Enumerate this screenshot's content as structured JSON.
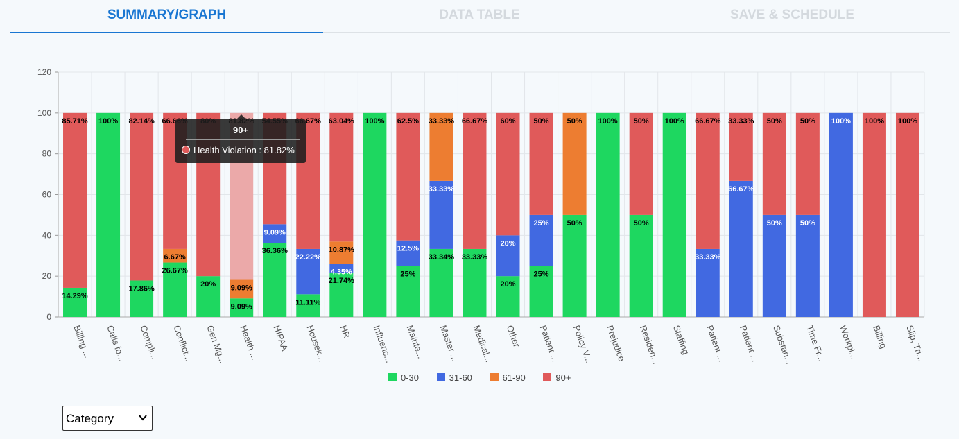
{
  "tabs": [
    {
      "label": "SUMMARY/GRAPH",
      "active": true
    },
    {
      "label": "DATA TABLE",
      "active": false
    },
    {
      "label": "SAVE & SCHEDULE",
      "active": false
    }
  ],
  "colors": {
    "c0_30": "#1ed760",
    "c31_60": "#4169e1",
    "c61_90": "#ed7d31",
    "c90p": "#e05a5a",
    "accent": "#1976d2"
  },
  "chart_data": {
    "type": "bar",
    "stacked": true,
    "ylim": [
      0,
      120
    ],
    "yticks": [
      0,
      20,
      40,
      60,
      80,
      100,
      120
    ],
    "grid": true,
    "legend_position": "bottom",
    "categories": [
      "Billing ...",
      "Calls fo...",
      "Compli...",
      "Conflict...",
      "Gen Mg...",
      "Health ...",
      "HIPAA",
      "Housek...",
      "HR",
      "Influenc...",
      "Mainte...",
      "Master ...",
      "Medical...",
      "Other",
      "Patient ...",
      "Policy V...",
      "Prejudice",
      "Residen...",
      "Staffing",
      "Patient ...",
      "Patient ...",
      "Substan...",
      "Time Fr...",
      "Workpl...",
      "Billing",
      "Slip, Tri..."
    ],
    "series": [
      {
        "name": "0-30",
        "color": "#1ed760",
        "values": [
          14.29,
          100,
          17.86,
          26.67,
          20,
          9.09,
          36.36,
          11.11,
          21.74,
          100,
          25,
          33.34,
          33.33,
          20,
          25,
          50,
          100,
          50,
          100,
          0,
          0,
          0,
          0,
          0,
          0,
          0
        ],
        "labels": [
          "14.29%",
          "100%",
          "17.86%",
          "26.67%",
          "20%",
          "9.09%",
          "36.36%",
          "11.11%",
          "21.74%",
          "100%",
          "25%",
          "33.34%",
          "33.33%",
          "20%",
          "25%",
          "50%",
          "100%",
          "50%",
          "100%",
          "",
          "",
          "",
          "",
          "",
          "",
          ""
        ]
      },
      {
        "name": "31-60",
        "color": "#4169e1",
        "values": [
          0,
          0,
          0,
          0,
          0,
          0,
          9.09,
          22.22,
          4.35,
          0,
          12.5,
          33.33,
          0,
          20,
          25,
          0,
          0,
          0,
          0,
          33.33,
          66.67,
          50,
          50,
          100,
          0,
          0
        ],
        "labels": [
          "",
          "",
          "",
          "",
          "",
          "",
          "9.09%",
          "22.22%",
          "4.35%",
          "",
          "12.5%",
          "33.33%",
          "",
          "20%",
          "25%",
          "",
          "",
          "",
          "",
          "33.33%",
          "66.67%",
          "50%",
          "50%",
          "100%",
          "",
          ""
        ]
      },
      {
        "name": "61-90",
        "color": "#ed7d31",
        "values": [
          0,
          0,
          0,
          6.67,
          0,
          9.09,
          0,
          0,
          10.87,
          0,
          0,
          33.33,
          0,
          0,
          0,
          50,
          0,
          0,
          0,
          0,
          0,
          0,
          0,
          0,
          0,
          0
        ],
        "labels": [
          "",
          "",
          "",
          "6.67%",
          "",
          "9.09%",
          "",
          "",
          "10.87%",
          "",
          "",
          "33.33%",
          "",
          "",
          "",
          "50%",
          "",
          "",
          "",
          "",
          "",
          "",
          "",
          "",
          "",
          ""
        ]
      },
      {
        "name": "90+",
        "color": "#e05a5a",
        "values": [
          85.71,
          0,
          82.14,
          66.66,
          80,
          81.82,
          54.55,
          66.67,
          63.04,
          0,
          62.5,
          0,
          66.67,
          60,
          50,
          0,
          0,
          50,
          0,
          66.67,
          33.33,
          50,
          50,
          0,
          100,
          100
        ],
        "labels": [
          "85.71%",
          "",
          "82.14%",
          "66.66%",
          "80%",
          "81.82%",
          "54.55%",
          "66.67%",
          "63.04%",
          "",
          "62.5%",
          "",
          "66.67%",
          "60%",
          "50%",
          "",
          "",
          "50%",
          "",
          "66.67%",
          "33.33%",
          "50%",
          "50%",
          "",
          "100%",
          "100%"
        ]
      }
    ]
  },
  "tooltip": {
    "title": "90+",
    "text": "Health Violation : 81.82%",
    "category_index": 5
  },
  "select": {
    "value": "Category"
  }
}
